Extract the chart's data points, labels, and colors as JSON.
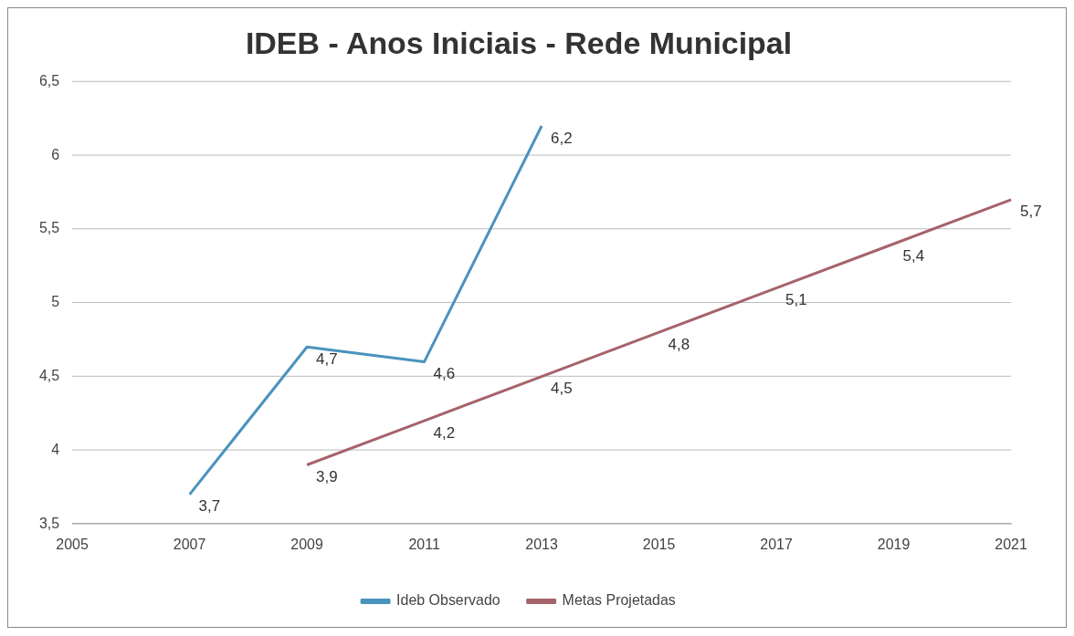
{
  "chart_data": {
    "type": "line",
    "title": "IDEB - Anos Iniciais - Rede Municipal",
    "categories": [
      "2005",
      "2007",
      "2009",
      "2011",
      "2013",
      "2015",
      "2017",
      "2019",
      "2021"
    ],
    "series": [
      {
        "name": "Ideb Observado",
        "color": "#4a93bd",
        "values": [
          null,
          3.7,
          4.7,
          4.6,
          6.2,
          null,
          null,
          null,
          null
        ],
        "value_labels": [
          null,
          "3,7",
          "4,7",
          "4,6",
          "6,2",
          null,
          null,
          null,
          null
        ]
      },
      {
        "name": "Metas Projetadas",
        "color": "#a5636b",
        "values": [
          null,
          null,
          3.9,
          4.2,
          4.5,
          4.8,
          5.1,
          5.4,
          5.7
        ],
        "value_labels": [
          null,
          null,
          "3,9",
          "4,2",
          "4,5",
          "4,8",
          "5,1",
          "5,4",
          "5,7"
        ]
      }
    ],
    "ylim": [
      3.5,
      6.5
    ],
    "yticks": [
      {
        "value": 3.5,
        "label": "3,5"
      },
      4,
      {
        "value": 4.5,
        "label": "4,5"
      },
      5,
      {
        "value": 5.5,
        "label": "5,5"
      },
      6,
      {
        "value": 6.5,
        "label": "6,5"
      }
    ],
    "grid": "y",
    "legend": "bottom",
    "marker": "none",
    "line_style": "solid"
  }
}
